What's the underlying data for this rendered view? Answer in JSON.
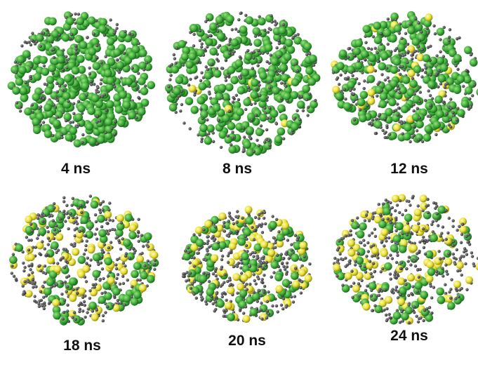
{
  "panels": [
    {
      "label": "4 ns"
    },
    {
      "label": "8 ns"
    },
    {
      "label": "12 ns"
    },
    {
      "label": "18 ns"
    },
    {
      "label": "20 ns"
    },
    {
      "label": "24 ns"
    }
  ]
}
